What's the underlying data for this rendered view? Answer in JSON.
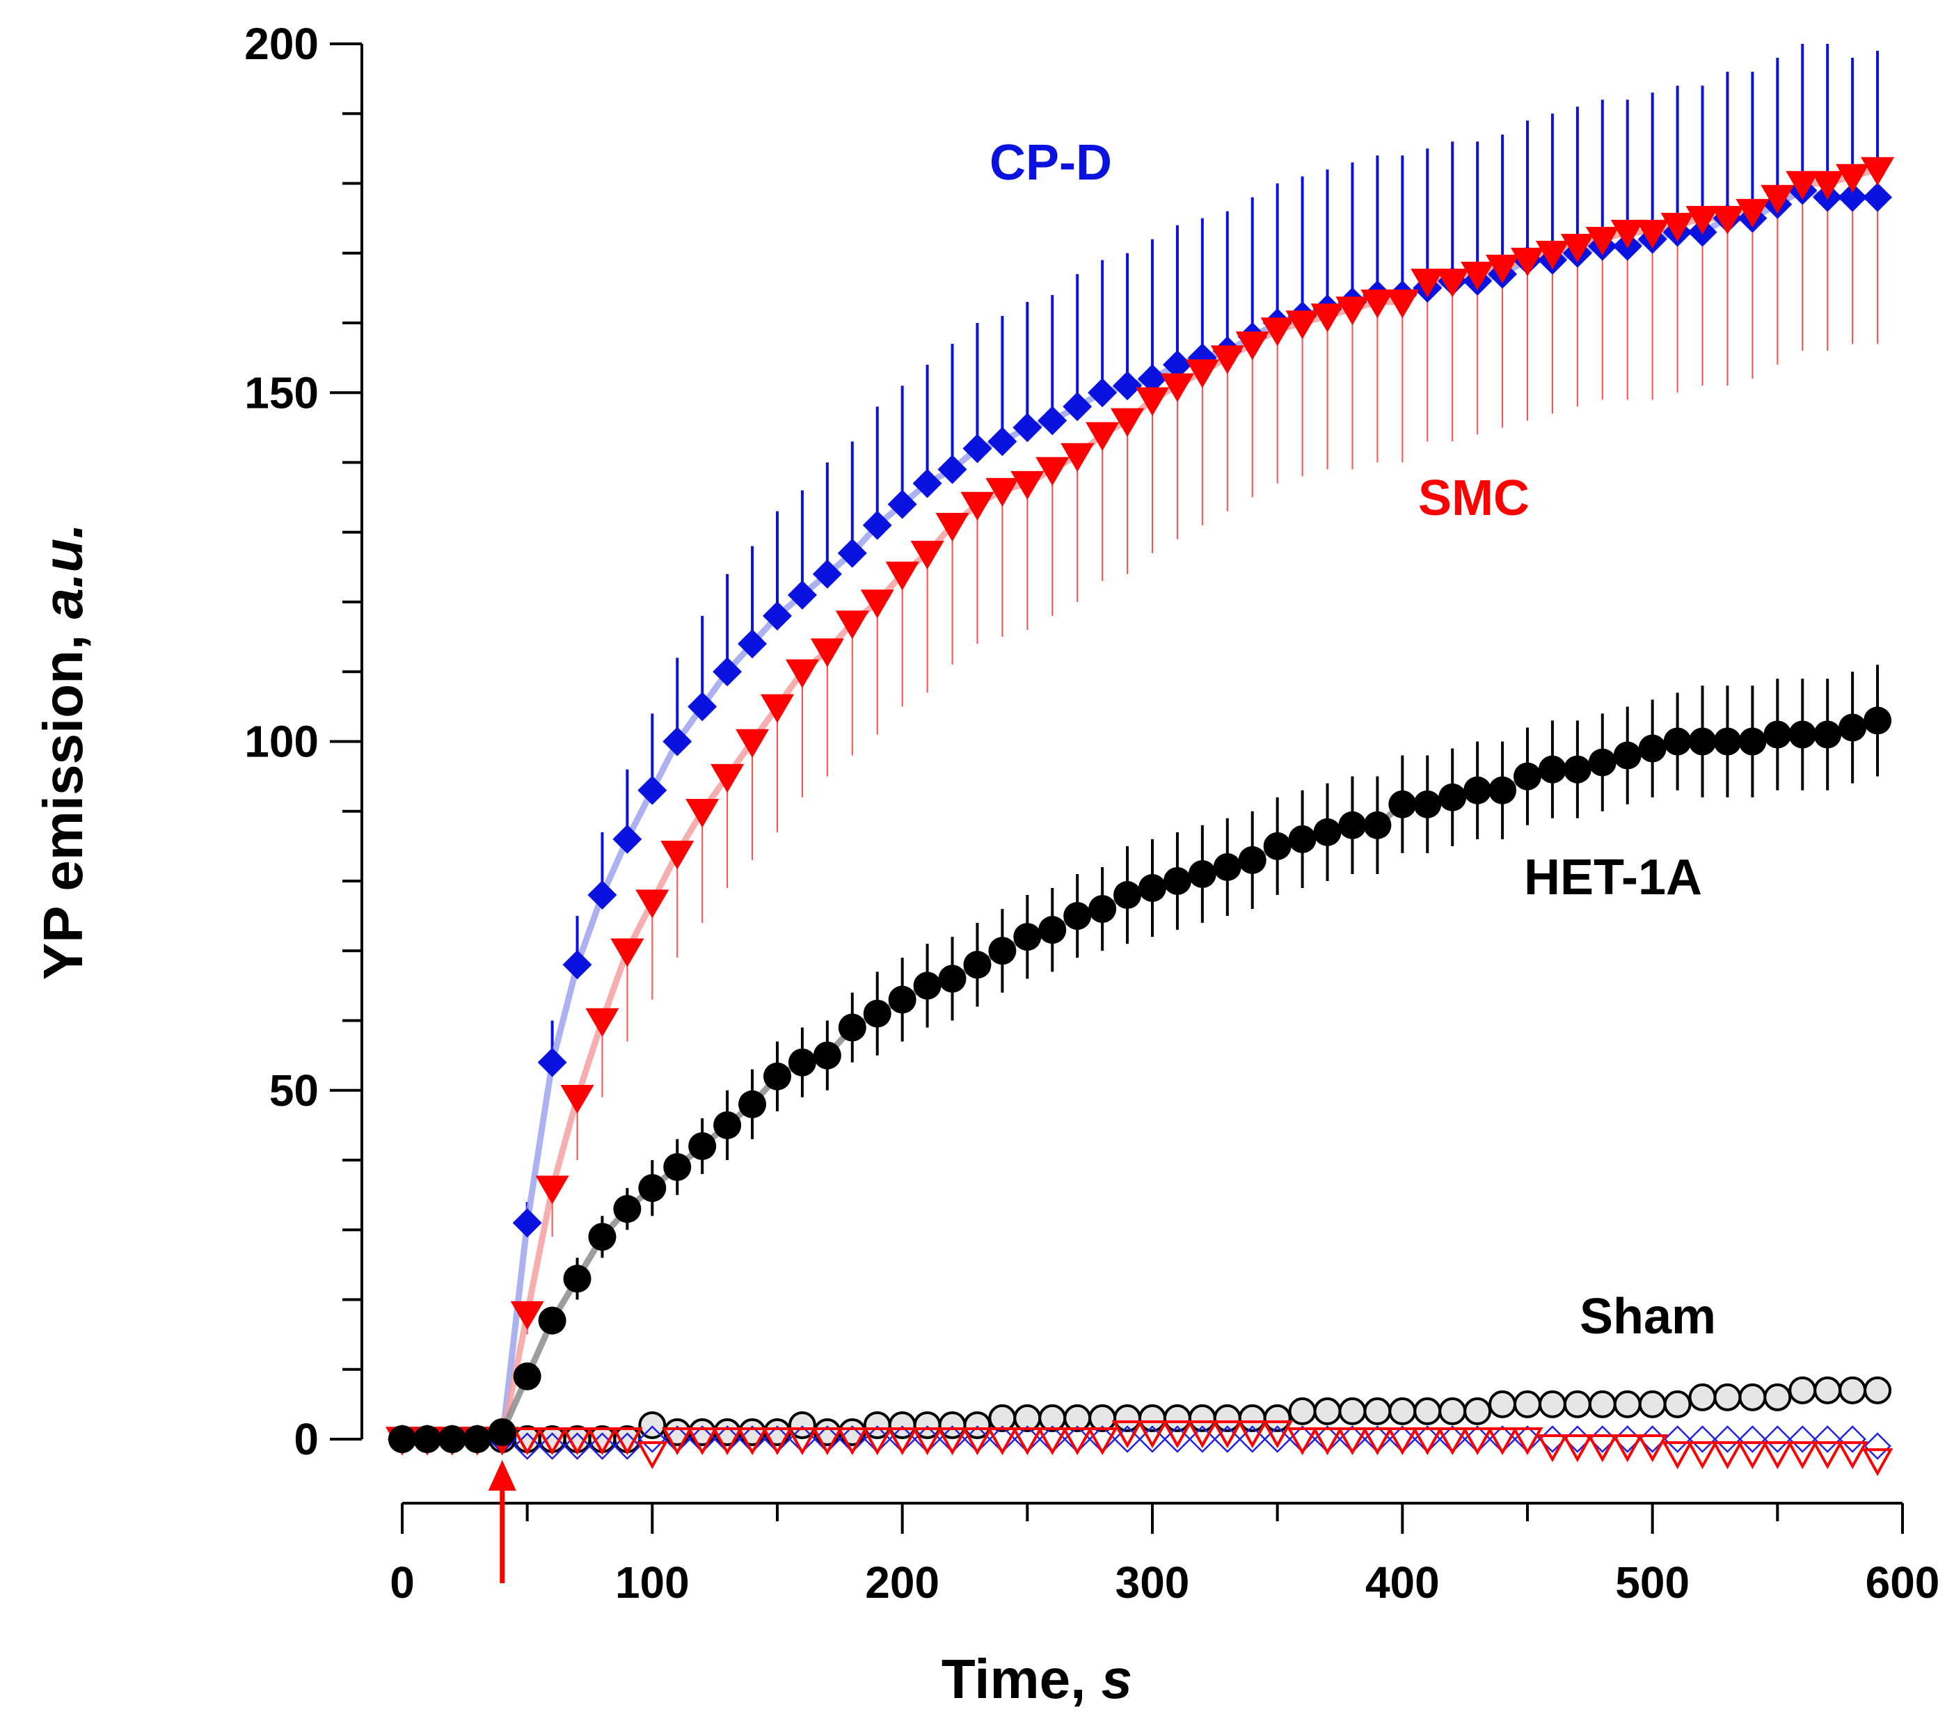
{
  "chart_data": {
    "type": "scatter",
    "title": "",
    "xlabel": "Time, ",
    "xlabel_italic": "s",
    "ylabel": "YP emission, ",
    "ylabel_italic": "a.u.",
    "xlim": [
      0,
      600
    ],
    "ylim": [
      0,
      200
    ],
    "x_ticks": [
      0,
      100,
      200,
      300,
      400,
      500,
      600
    ],
    "y_ticks": [
      0,
      50,
      100,
      150,
      200
    ],
    "x_tick_labels": [
      "0",
      "100",
      "200",
      "300",
      "400",
      "500",
      "600"
    ],
    "y_tick_labels": [
      "0",
      "50",
      "100",
      "150",
      "200"
    ],
    "grid": false,
    "stimulus_arrow_x": 40,
    "x": [
      0,
      10,
      20,
      30,
      40,
      50,
      60,
      70,
      80,
      90,
      100,
      110,
      120,
      130,
      140,
      150,
      160,
      170,
      180,
      190,
      200,
      210,
      220,
      230,
      240,
      250,
      260,
      270,
      280,
      290,
      300,
      310,
      320,
      330,
      340,
      350,
      360,
      370,
      380,
      390,
      400,
      410,
      420,
      430,
      440,
      450,
      460,
      470,
      480,
      490,
      500,
      510,
      520,
      530,
      540,
      550,
      560,
      570,
      580,
      590
    ],
    "series": [
      {
        "name": "CP-D",
        "label": "CP-D",
        "color": "#0a12e0",
        "line_color": "#9ea4ee",
        "marker": "diamond",
        "filled": true,
        "error_style": "up",
        "values": [
          0,
          0,
          0,
          0,
          0,
          31,
          54,
          68,
          78,
          86,
          93,
          100,
          105,
          110,
          114,
          118,
          121,
          124,
          127,
          131,
          134,
          137,
          139,
          142,
          143,
          145,
          146,
          148,
          150,
          151,
          152,
          154,
          155,
          156,
          158,
          160,
          161,
          162,
          163,
          164,
          164,
          165,
          166,
          166,
          167,
          169,
          169,
          170,
          171,
          171,
          172,
          173,
          173,
          175,
          175,
          177,
          179,
          178,
          178,
          178
        ],
        "errors": [
          0,
          0,
          0,
          0,
          0,
          3,
          6,
          7,
          9,
          10,
          11,
          12,
          13,
          14,
          14,
          15,
          15,
          16,
          16,
          17,
          17,
          17,
          18,
          18,
          18,
          18,
          18,
          19,
          19,
          19,
          20,
          20,
          20,
          20,
          20,
          20,
          20,
          20,
          20,
          20,
          20,
          20,
          20,
          20,
          20,
          20,
          21,
          21,
          21,
          21,
          21,
          21,
          21,
          21,
          21,
          21,
          21,
          22,
          20,
          21
        ]
      },
      {
        "name": "SMC",
        "label": "SMC",
        "color": "#ff0000",
        "line_color": "#f5a0a0",
        "marker": "triangle-down",
        "filled": true,
        "error_style": "down",
        "values": [
          0,
          0,
          0,
          0,
          0,
          18,
          36,
          49,
          60,
          70,
          77,
          84,
          90,
          95,
          100,
          105,
          110,
          113,
          117,
          120,
          124,
          127,
          131,
          134,
          136,
          137,
          139,
          141,
          144,
          146,
          149,
          151,
          153,
          155,
          157,
          159,
          160,
          161,
          162,
          163,
          163,
          166,
          166,
          167,
          168,
          169,
          170,
          171,
          172,
          173,
          173,
          174,
          175,
          175,
          176,
          178,
          180,
          180,
          181,
          182
        ],
        "errors": [
          0,
          0,
          0,
          0,
          0,
          3,
          7,
          9,
          11,
          13,
          14,
          15,
          16,
          16,
          17,
          18,
          18,
          18,
          19,
          19,
          19,
          20,
          20,
          20,
          21,
          21,
          21,
          21,
          21,
          22,
          22,
          22,
          22,
          22,
          22,
          22,
          22,
          22,
          23,
          23,
          23,
          23,
          23,
          23,
          23,
          23,
          23,
          23,
          23,
          24,
          24,
          24,
          24,
          24,
          24,
          24,
          24,
          24,
          24,
          25
        ]
      },
      {
        "name": "HET-1A",
        "label": "HET-1A",
        "color": "#000000",
        "line_color": "#8c8c8c",
        "marker": "circle",
        "filled": true,
        "error_style": "both",
        "values": [
          0,
          0,
          0,
          0,
          1,
          9,
          17,
          23,
          29,
          33,
          36,
          39,
          42,
          45,
          48,
          52,
          54,
          55,
          59,
          61,
          63,
          65,
          66,
          68,
          70,
          72,
          73,
          75,
          76,
          78,
          79,
          80,
          81,
          82,
          83,
          85,
          86,
          87,
          88,
          88,
          91,
          91,
          92,
          93,
          93,
          95,
          96,
          96,
          97,
          98,
          99,
          100,
          100,
          100,
          100,
          101,
          101,
          101,
          102,
          103
        ],
        "errors": [
          0,
          0,
          0,
          0,
          0,
          1,
          2,
          3,
          3,
          3,
          4,
          4,
          4,
          5,
          5,
          5,
          5,
          5,
          5,
          6,
          6,
          6,
          6,
          6,
          6,
          6,
          6,
          6,
          6,
          7,
          7,
          7,
          7,
          7,
          7,
          7,
          7,
          7,
          7,
          7,
          7,
          7,
          7,
          7,
          7,
          7,
          7,
          7,
          7,
          7,
          7,
          7,
          8,
          8,
          8,
          8,
          8,
          8,
          8,
          8
        ]
      },
      {
        "name": "Sham HET-1A",
        "label": "Sham",
        "color": "#000000",
        "marker": "circle",
        "filled": false,
        "values": [
          0,
          0,
          0,
          0,
          0,
          0,
          0,
          0,
          0,
          0,
          2,
          1,
          1,
          1,
          1,
          1,
          2,
          1,
          1,
          2,
          2,
          2,
          2,
          2,
          3,
          3,
          3,
          3,
          3,
          3,
          3,
          3,
          3,
          3,
          3,
          3,
          4,
          4,
          4,
          4,
          4,
          4,
          4,
          4,
          5,
          5,
          5,
          5,
          5,
          5,
          5,
          5,
          6,
          6,
          6,
          6,
          7,
          7,
          7,
          7
        ]
      },
      {
        "name": "Sham CP-D",
        "color": "#2020e6",
        "marker": "diamond",
        "filled": false,
        "values": [
          0,
          0,
          0,
          0,
          0,
          -1,
          -1,
          -1,
          -1,
          -1,
          0,
          0,
          0,
          0,
          0,
          0,
          0,
          0,
          0,
          0,
          0,
          0,
          0,
          0,
          0,
          0,
          0,
          0,
          0,
          0,
          0,
          0,
          0,
          0,
          0,
          0,
          0,
          0,
          0,
          0,
          0,
          0,
          0,
          0,
          0,
          0,
          0,
          0,
          0,
          0,
          0,
          0,
          0,
          0,
          0,
          0,
          0,
          0,
          0,
          -1
        ]
      },
      {
        "name": "Sham SMC",
        "color": "#ff0000",
        "marker": "triangle-down",
        "filled": false,
        "values": [
          0,
          0,
          0,
          0,
          0,
          0,
          0,
          0,
          0,
          0,
          -2,
          0,
          0,
          0,
          0,
          0,
          0,
          0,
          0,
          0,
          0,
          0,
          0,
          0,
          0,
          0,
          0,
          0,
          0,
          1,
          1,
          1,
          1,
          1,
          1,
          1,
          0,
          0,
          0,
          0,
          0,
          0,
          0,
          0,
          0,
          0,
          -1,
          -1,
          -1,
          -1,
          -1,
          -2,
          -2,
          -2,
          -2,
          -2,
          -2,
          -2,
          -2,
          -3
        ]
      }
    ]
  }
}
